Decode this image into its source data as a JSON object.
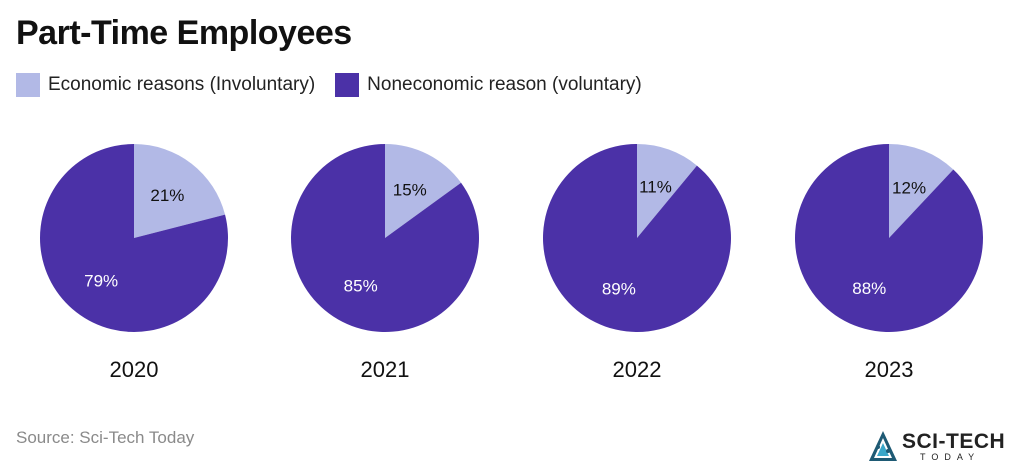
{
  "chart_data": {
    "type": "pie",
    "title": "Part-Time Employees",
    "legend": [
      {
        "name": "Economic reasons (Involuntary)",
        "color": "#b2b9e6"
      },
      {
        "name": "Noneconomic reason (voluntary)",
        "color": "#4b31a7"
      }
    ],
    "legend_position": "top-left",
    "pies": [
      {
        "label": "2020",
        "values": [
          21,
          79
        ],
        "value_labels": [
          "21%",
          "79%"
        ]
      },
      {
        "label": "2021",
        "values": [
          15,
          85
        ],
        "value_labels": [
          "15%",
          "85%"
        ]
      },
      {
        "label": "2022",
        "values": [
          11,
          89
        ],
        "value_labels": [
          "11%",
          "89%"
        ]
      },
      {
        "label": "2023",
        "values": [
          12,
          88
        ],
        "value_labels": [
          "12%",
          "88%"
        ]
      }
    ]
  },
  "footer": {
    "source": "Source: Sci-Tech Today",
    "logo_main": "SCI-TECH",
    "logo_sub": "TODAY"
  }
}
